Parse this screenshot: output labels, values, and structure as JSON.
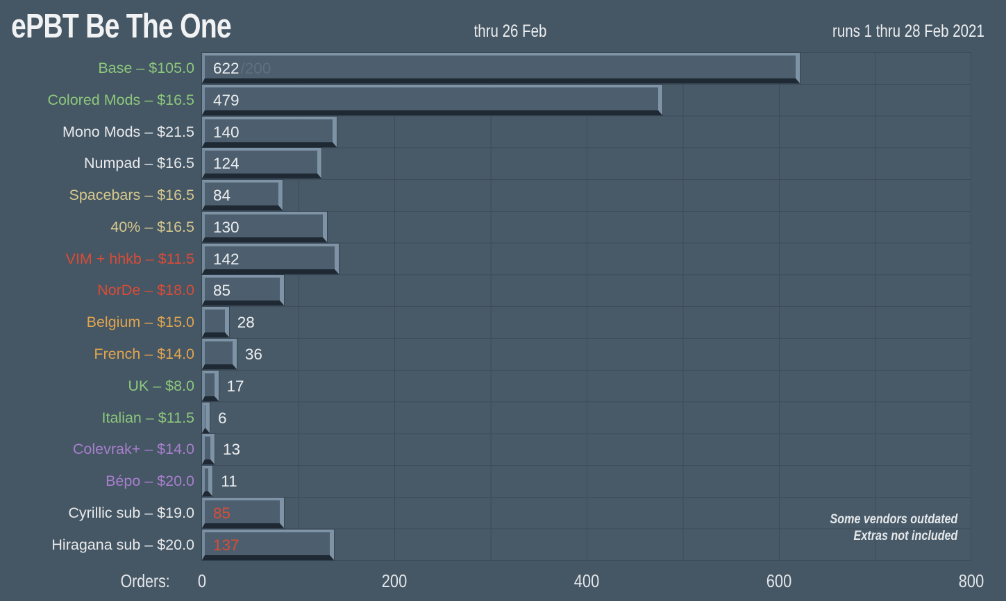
{
  "header": {
    "title": "ePBT Be The One",
    "center_note": "thru 26 Feb",
    "right_note": "runs 1 thru 28 Feb 2021"
  },
  "axis": {
    "label": "Orders:",
    "ticks": [
      0,
      200,
      400,
      600,
      800
    ]
  },
  "footnotes": {
    "line1": "Some vendors outdated",
    "line2": "Extras not included"
  },
  "colors": {
    "background": "#455664",
    "grid_line": "#3d4b58",
    "bar_face": "#4d5f6e",
    "bar_bevel_light": "#7e93a5",
    "bar_bevel_dark": "#1e2933",
    "label_green": "#8cc87c",
    "label_white": "#e8eaec",
    "label_tan": "#d5c88e",
    "label_red": "#da4c37",
    "label_orange": "#dfa44e",
    "label_purple": "#a87fcd",
    "value_white": "#eceef0",
    "value_red": "#da4c37",
    "value_faded": "#5f7080"
  },
  "chart_data": {
    "type": "bar",
    "orientation": "horizontal",
    "title": "ePBT Be The One",
    "xlabel": "Orders:",
    "xlim": [
      0,
      800
    ],
    "grid": true,
    "rows": [
      {
        "label": "Base – $105.0",
        "value": 622,
        "cap": "/200",
        "label_color": "green",
        "value_color": "white"
      },
      {
        "label": "Colored Mods – $16.5",
        "value": 479,
        "cap": null,
        "label_color": "green",
        "value_color": "white"
      },
      {
        "label": "Mono Mods – $21.5",
        "value": 140,
        "cap": null,
        "label_color": "white",
        "value_color": "white"
      },
      {
        "label": "Numpad – $16.5",
        "value": 124,
        "cap": null,
        "label_color": "white",
        "value_color": "white"
      },
      {
        "label": "Spacebars – $16.5",
        "value": 84,
        "cap": null,
        "label_color": "tan",
        "value_color": "white"
      },
      {
        "label": "40% – $16.5",
        "value": 130,
        "cap": null,
        "label_color": "tan",
        "value_color": "white"
      },
      {
        "label": "VIM + hhkb – $11.5",
        "value": 142,
        "cap": null,
        "label_color": "red",
        "value_color": "white"
      },
      {
        "label": "NorDe – $18.0",
        "value": 85,
        "cap": null,
        "label_color": "red",
        "value_color": "white"
      },
      {
        "label": "Belgium – $15.0",
        "value": 28,
        "cap": null,
        "label_color": "orange",
        "value_color": "white"
      },
      {
        "label": "French – $14.0",
        "value": 36,
        "cap": null,
        "label_color": "orange",
        "value_color": "white"
      },
      {
        "label": "UK – $8.0",
        "value": 17,
        "cap": null,
        "label_color": "green",
        "value_color": "white"
      },
      {
        "label": "Italian – $11.5",
        "value": 6,
        "cap": null,
        "label_color": "green",
        "value_color": "white"
      },
      {
        "label": "Colevrak+ – $14.0",
        "value": 13,
        "cap": null,
        "label_color": "purple",
        "value_color": "white"
      },
      {
        "label": "Bépo – $20.0",
        "value": 11,
        "cap": null,
        "label_color": "purple",
        "value_color": "white"
      },
      {
        "label": "Cyrillic sub – $19.0",
        "value": 85,
        "cap": null,
        "label_color": "white",
        "value_color": "red"
      },
      {
        "label": "Hiragana sub – $20.0",
        "value": 137,
        "cap": null,
        "label_color": "white",
        "value_color": "red"
      }
    ]
  }
}
